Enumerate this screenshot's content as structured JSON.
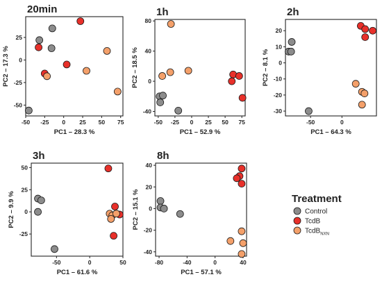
{
  "legend": {
    "title": "Treatment",
    "items": [
      {
        "label": "Control",
        "sub": "",
        "color": "#8c8c8c"
      },
      {
        "label": "TcdB",
        "sub": "",
        "color": "#e8302a"
      },
      {
        "label": "TcdB",
        "sub": "NXN",
        "color": "#f4a06a"
      }
    ]
  },
  "chart_data": [
    {
      "type": "scatter",
      "title": "20min",
      "xlabel": "PC1 – 28.3 %",
      "ylabel": "PC2 – 17.3 %",
      "xlim": [
        -50,
        78
      ],
      "ylim": [
        -62,
        48
      ],
      "xticks": [
        -50,
        -25,
        0,
        25,
        50,
        75
      ],
      "yticks": [
        25,
        0,
        -25,
        -50
      ],
      "series": [
        {
          "group": "Control",
          "color": "#8c8c8c",
          "points": [
            [
              -46,
              -56
            ],
            [
              -32,
              22
            ],
            [
              -15,
              35
            ],
            [
              -16,
              13
            ]
          ]
        },
        {
          "group": "TcdB",
          "color": "#e8302a",
          "points": [
            [
              22,
              43
            ],
            [
              -33,
              14
            ],
            [
              -25,
              -15
            ],
            [
              4,
              -5
            ]
          ]
        },
        {
          "group": "TcdB NXN",
          "color": "#f4a06a",
          "points": [
            [
              -22,
              -18
            ],
            [
              30,
              -12
            ],
            [
              57,
              10
            ],
            [
              71,
              -35
            ]
          ]
        }
      ]
    },
    {
      "type": "scatter",
      "title": "1h",
      "xlabel": "PC1 – 52.9 %",
      "ylabel": "PC2 – 18.5 %",
      "xlim": [
        -55,
        80
      ],
      "ylim": [
        -46,
        82
      ],
      "xticks": [
        -50,
        -25,
        0,
        25,
        50,
        75
      ],
      "yticks": [
        80,
        40,
        0,
        -40
      ],
      "series": [
        {
          "group": "Control",
          "color": "#8c8c8c",
          "points": [
            [
              -48,
              -20
            ],
            [
              -43,
              -19
            ],
            [
              -47,
              -28
            ],
            [
              -20,
              -39
            ]
          ]
        },
        {
          "group": "TcdB",
          "color": "#e8302a",
          "points": [
            [
              62,
              9
            ],
            [
              71,
              7
            ],
            [
              60,
              0
            ],
            [
              76,
              -22
            ]
          ]
        },
        {
          "group": "TcdB NXN",
          "color": "#f4a06a",
          "points": [
            [
              -31,
              76
            ],
            [
              -44,
              7
            ],
            [
              -32,
              12
            ],
            [
              -5,
              14
            ]
          ]
        }
      ]
    },
    {
      "type": "scatter",
      "title": "2h",
      "xlabel": "PC1 – 64.3 %",
      "ylabel": "PC2 – 8.1 %",
      "xlim": [
        -90,
        55
      ],
      "ylim": [
        -33,
        27
      ],
      "xticks": [
        -50,
        0
      ],
      "yticks": [
        20,
        10,
        0,
        -10,
        -20,
        -30
      ],
      "series": [
        {
          "group": "Control",
          "color": "#8c8c8c",
          "points": [
            [
              -80,
              13
            ],
            [
              -85,
              7
            ],
            [
              -81,
              7
            ],
            [
              -53,
              -30
            ]
          ]
        },
        {
          "group": "TcdB",
          "color": "#e8302a",
          "points": [
            [
              30,
              23
            ],
            [
              37,
              21
            ],
            [
              49,
              20
            ],
            [
              37,
              16
            ]
          ]
        },
        {
          "group": "TcdB NXN",
          "color": "#f4a06a",
          "points": [
            [
              22,
              -13
            ],
            [
              32,
              -18
            ],
            [
              36,
              -19
            ],
            [
              32,
              -26
            ]
          ]
        }
      ]
    },
    {
      "type": "scatter",
      "title": "3h",
      "xlabel": "PC1 – 61.6 %",
      "ylabel": "PC2 – 9.9 %",
      "xlim": [
        -88,
        50
      ],
      "ylim": [
        -50,
        55
      ],
      "xticks": [
        -50,
        0,
        50
      ],
      "yticks": [
        50,
        25,
        0,
        -25
      ],
      "series": [
        {
          "group": "Control",
          "color": "#8c8c8c",
          "points": [
            [
              -78,
              15
            ],
            [
              -73,
              13
            ],
            [
              -78,
              0
            ],
            [
              -53,
              -42
            ]
          ]
        },
        {
          "group": "TcdB",
          "color": "#e8302a",
          "points": [
            [
              28,
              49
            ],
            [
              38,
              6
            ],
            [
              45,
              -3
            ],
            [
              36,
              -27
            ]
          ]
        },
        {
          "group": "TcdB NXN",
          "color": "#f4a06a",
          "points": [
            [
              30,
              -2
            ],
            [
              34,
              -4
            ],
            [
              32,
              -8
            ],
            [
              40,
              -2
            ]
          ]
        }
      ]
    },
    {
      "type": "scatter",
      "title": "8h",
      "xlabel": "PC1 – 57.1 %",
      "ylabel": "PC2 – 15.1 %",
      "xlim": [
        -85,
        45
      ],
      "ylim": [
        -44,
        42
      ],
      "xticks": [
        -80,
        -40,
        0,
        40
      ],
      "yticks": [
        40,
        20,
        0,
        -20,
        -40
      ],
      "series": [
        {
          "group": "Control",
          "color": "#8c8c8c",
          "points": [
            [
              -78,
              7
            ],
            [
              -78,
              1
            ],
            [
              -73,
              0
            ],
            [
              -50,
              -5
            ]
          ]
        },
        {
          "group": "TcdB",
          "color": "#e8302a",
          "points": [
            [
              38,
              37
            ],
            [
              35,
              30
            ],
            [
              31,
              28
            ],
            [
              38,
              23
            ]
          ]
        },
        {
          "group": "TcdB NXN",
          "color": "#f4a06a",
          "points": [
            [
              22,
              -30
            ],
            [
              38,
              -21
            ],
            [
              40,
              -32
            ],
            [
              38,
              -42
            ]
          ]
        }
      ]
    }
  ]
}
